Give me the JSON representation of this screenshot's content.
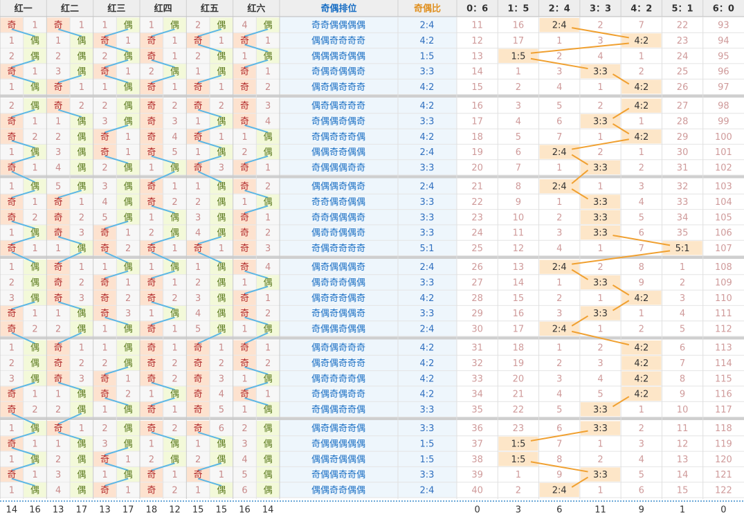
{
  "header": [
    "红一",
    "红二",
    "红三",
    "红四",
    "红五",
    "红六",
    "奇偶排位",
    "奇偶比",
    "0：6",
    "1：5",
    "2：4",
    "3：3",
    "4：2",
    "5：1",
    "6：0"
  ],
  "rows": [
    {
      "cells": [
        "奇",
        "1",
        "奇",
        "1",
        "1",
        "偶",
        "1",
        "偶",
        "2",
        "偶",
        "4",
        "偶"
      ],
      "pattern": "奇奇偶偶偶偶",
      "ratio": "2:4",
      "miss": [
        11,
        16,
        "2:4",
        2,
        7,
        22,
        93
      ]
    },
    {
      "cells": [
        "1",
        "偶",
        "1",
        "偶",
        "奇",
        "1",
        "奇",
        "1",
        "奇",
        "1",
        "奇",
        "1"
      ],
      "pattern": "偶偶奇奇奇奇",
      "ratio": "4:2",
      "miss": [
        12,
        17,
        1,
        3,
        "4:2",
        23,
        94
      ]
    },
    {
      "cells": [
        "2",
        "偶",
        "2",
        "偶",
        "2",
        "偶",
        "奇",
        "1",
        "2",
        "偶",
        "1",
        "偶"
      ],
      "pattern": "偶偶偶奇偶偶",
      "ratio": "1:5",
      "miss": [
        13,
        "1:5",
        2,
        4,
        1,
        24,
        95
      ]
    },
    {
      "cells": [
        "奇",
        "1",
        "3",
        "偶",
        "奇",
        "1",
        "2",
        "偶",
        "1",
        "偶",
        "奇",
        "1"
      ],
      "pattern": "奇偶奇偶偶奇",
      "ratio": "3:3",
      "miss": [
        14,
        1,
        3,
        "3:3",
        2,
        25,
        96
      ]
    },
    {
      "cells": [
        "1",
        "偶",
        "奇",
        "1",
        "1",
        "偶",
        "奇",
        "1",
        "奇",
        "1",
        "奇",
        "2"
      ],
      "pattern": "偶奇偶奇奇奇",
      "ratio": "4:2",
      "miss": [
        15,
        2,
        4,
        1,
        "4:2",
        26,
        97
      ]
    },
    {
      "cells": [
        "2",
        "偶",
        "奇",
        "2",
        "2",
        "偶",
        "奇",
        "2",
        "奇",
        "2",
        "奇",
        "3"
      ],
      "pattern": "偶奇偶奇奇奇",
      "ratio": "4:2",
      "miss": [
        16,
        3,
        5,
        2,
        "4:2",
        27,
        98
      ]
    },
    {
      "cells": [
        "奇",
        "1",
        "1",
        "偶",
        "3",
        "偶",
        "奇",
        "3",
        "1",
        "偶",
        "奇",
        "4"
      ],
      "pattern": "奇偶偶奇偶奇",
      "ratio": "3:3",
      "miss": [
        17,
        4,
        6,
        "3:3",
        1,
        28,
        99
      ]
    },
    {
      "cells": [
        "奇",
        "2",
        "2",
        "偶",
        "奇",
        "1",
        "奇",
        "4",
        "奇",
        "1",
        "1",
        "偶"
      ],
      "pattern": "奇偶奇奇奇偶",
      "ratio": "4:2",
      "miss": [
        18,
        5,
        7,
        1,
        "4:2",
        29,
        100
      ]
    },
    {
      "cells": [
        "1",
        "偶",
        "3",
        "偶",
        "奇",
        "1",
        "奇",
        "5",
        "1",
        "偶",
        "2",
        "偶"
      ],
      "pattern": "偶偶奇奇偶偶",
      "ratio": "2:4",
      "miss": [
        19,
        6,
        "2:4",
        2,
        1,
        30,
        101
      ]
    },
    {
      "cells": [
        "奇",
        "1",
        "4",
        "偶",
        "2",
        "偶",
        "1",
        "偶",
        "奇",
        "3",
        "奇",
        "1"
      ],
      "pattern": "奇偶偶偶奇奇",
      "ratio": "3:3",
      "miss": [
        20,
        7,
        1,
        "3:3",
        2,
        31,
        102
      ]
    },
    {
      "cells": [
        "1",
        "偶",
        "5",
        "偶",
        "3",
        "偶",
        "奇",
        "1",
        "1",
        "偶",
        "奇",
        "2"
      ],
      "pattern": "偶偶偶奇偶奇",
      "ratio": "2:4",
      "miss": [
        21,
        8,
        "2:4",
        1,
        3,
        32,
        103
      ]
    },
    {
      "cells": [
        "奇",
        "1",
        "奇",
        "1",
        "4",
        "偶",
        "奇",
        "2",
        "2",
        "偶",
        "1",
        "偶"
      ],
      "pattern": "奇奇偶奇偶偶",
      "ratio": "3:3",
      "miss": [
        22,
        9,
        1,
        "3:3",
        4,
        33,
        104
      ]
    },
    {
      "cells": [
        "奇",
        "2",
        "奇",
        "2",
        "5",
        "偶",
        "1",
        "偶",
        "3",
        "偶",
        "奇",
        "1"
      ],
      "pattern": "奇奇偶偶偶奇",
      "ratio": "3:3",
      "miss": [
        23,
        10,
        2,
        "3:3",
        5,
        34,
        105
      ]
    },
    {
      "cells": [
        "1",
        "偶",
        "奇",
        "3",
        "奇",
        "1",
        "2",
        "偶",
        "4",
        "偶",
        "奇",
        "2"
      ],
      "pattern": "偶奇奇偶偶奇",
      "ratio": "3:3",
      "miss": [
        24,
        11,
        3,
        "3:3",
        6,
        35,
        106
      ]
    },
    {
      "cells": [
        "奇",
        "1",
        "1",
        "偶",
        "奇",
        "2",
        "奇",
        "1",
        "奇",
        "1",
        "奇",
        "3"
      ],
      "pattern": "奇偶奇奇奇奇",
      "ratio": "5:1",
      "miss": [
        25,
        12,
        4,
        1,
        7,
        "5:1",
        107
      ]
    },
    {
      "cells": [
        "1",
        "偶",
        "奇",
        "1",
        "1",
        "偶",
        "1",
        "偶",
        "1",
        "偶",
        "奇",
        "4"
      ],
      "pattern": "偶奇偶偶偶奇",
      "ratio": "2:4",
      "miss": [
        26,
        13,
        "2:4",
        2,
        8,
        1,
        108
      ]
    },
    {
      "cells": [
        "2",
        "偶",
        "奇",
        "2",
        "奇",
        "1",
        "奇",
        "1",
        "2",
        "偶",
        "1",
        "偶"
      ],
      "pattern": "偶奇奇奇偶偶",
      "ratio": "3:3",
      "miss": [
        27,
        14,
        1,
        "3:3",
        9,
        2,
        109
      ]
    },
    {
      "cells": [
        "3",
        "偶",
        "奇",
        "3",
        "奇",
        "2",
        "奇",
        "2",
        "3",
        "偶",
        "奇",
        "1"
      ],
      "pattern": "偶奇奇奇偶奇",
      "ratio": "4:2",
      "miss": [
        28,
        15,
        2,
        1,
        "4:2",
        3,
        110
      ]
    },
    {
      "cells": [
        "奇",
        "1",
        "1",
        "偶",
        "奇",
        "3",
        "1",
        "偶",
        "4",
        "偶",
        "奇",
        "2"
      ],
      "pattern": "奇偶奇偶偶奇",
      "ratio": "3:3",
      "miss": [
        29,
        16,
        3,
        "3:3",
        1,
        4,
        111
      ]
    },
    {
      "cells": [
        "奇",
        "2",
        "2",
        "偶",
        "1",
        "偶",
        "奇",
        "1",
        "5",
        "偶",
        "1",
        "偶"
      ],
      "pattern": "奇偶偶奇偶偶",
      "ratio": "2:4",
      "miss": [
        30,
        17,
        "2:4",
        1,
        2,
        5,
        112
      ]
    },
    {
      "cells": [
        "1",
        "偶",
        "奇",
        "1",
        "1",
        "偶",
        "奇",
        "1",
        "奇",
        "1",
        "奇",
        "1"
      ],
      "pattern": "偶奇偶奇奇奇",
      "ratio": "4:2",
      "miss": [
        31,
        18,
        1,
        2,
        "4:2",
        6,
        113
      ]
    },
    {
      "cells": [
        "2",
        "偶",
        "奇",
        "2",
        "2",
        "偶",
        "奇",
        "2",
        "奇",
        "2",
        "奇",
        "2"
      ],
      "pattern": "偶奇偶奇奇奇",
      "ratio": "4:2",
      "miss": [
        32,
        19,
        2,
        3,
        "4:2",
        7,
        114
      ]
    },
    {
      "cells": [
        "3",
        "偶",
        "奇",
        "3",
        "奇",
        "1",
        "奇",
        "2",
        "奇",
        "3",
        "1",
        "偶"
      ],
      "pattern": "偶奇奇奇奇偶",
      "ratio": "4:2",
      "miss": [
        33,
        20,
        3,
        4,
        "4:2",
        8,
        115
      ]
    },
    {
      "cells": [
        "奇",
        "1",
        "1",
        "偶",
        "奇",
        "2",
        "1",
        "偶",
        "奇",
        "4",
        "奇",
        "1"
      ],
      "pattern": "奇偶奇偶奇奇",
      "ratio": "4:2",
      "miss": [
        34,
        21,
        4,
        5,
        "4:2",
        9,
        116
      ]
    },
    {
      "cells": [
        "奇",
        "2",
        "2",
        "偶",
        "1",
        "偶",
        "奇",
        "1",
        "奇",
        "5",
        "1",
        "偶"
      ],
      "pattern": "奇偶偶奇奇偶",
      "ratio": "3:3",
      "miss": [
        35,
        22,
        5,
        "3:3",
        1,
        10,
        117
      ]
    },
    {
      "cells": [
        "1",
        "偶",
        "奇",
        "1",
        "2",
        "偶",
        "奇",
        "2",
        "奇",
        "6",
        "2",
        "偶"
      ],
      "pattern": "偶奇偶奇奇偶",
      "ratio": "3:3",
      "miss": [
        36,
        23,
        6,
        "3:3",
        2,
        11,
        118
      ]
    },
    {
      "cells": [
        "奇",
        "1",
        "1",
        "偶",
        "3",
        "偶",
        "1",
        "偶",
        "1",
        "偶",
        "3",
        "偶"
      ],
      "pattern": "奇偶偶偶偶偶",
      "ratio": "1:5",
      "miss": [
        37,
        "1:5",
        7,
        1,
        3,
        12,
        119
      ]
    },
    {
      "cells": [
        "1",
        "偶",
        "2",
        "偶",
        "奇",
        "1",
        "2",
        "偶",
        "2",
        "偶",
        "4",
        "偶"
      ],
      "pattern": "偶偶奇偶偶偶",
      "ratio": "1:5",
      "miss": [
        38,
        "1:5",
        8,
        2,
        4,
        13,
        120
      ]
    },
    {
      "cells": [
        "奇",
        "1",
        "3",
        "偶",
        "1",
        "偶",
        "奇",
        "1",
        "奇",
        "1",
        "5",
        "偶"
      ],
      "pattern": "奇偶偶奇奇偶",
      "ratio": "3:3",
      "miss": [
        39,
        1,
        9,
        "3:3",
        5,
        14,
        121
      ]
    },
    {
      "cells": [
        "1",
        "偶",
        "4",
        "偶",
        "奇",
        "1",
        "奇",
        "2",
        "1",
        "偶",
        "6",
        "偶"
      ],
      "pattern": "偶偶奇奇偶偶",
      "ratio": "2:4",
      "miss": [
        40,
        2,
        "2:4",
        1,
        6,
        15,
        122
      ]
    }
  ],
  "footer": {
    "red": [
      14,
      16,
      13,
      17,
      13,
      17,
      18,
      12,
      15,
      15,
      16,
      14
    ],
    "ratio": [
      0,
      3,
      6,
      11,
      9,
      1,
      0
    ]
  }
}
